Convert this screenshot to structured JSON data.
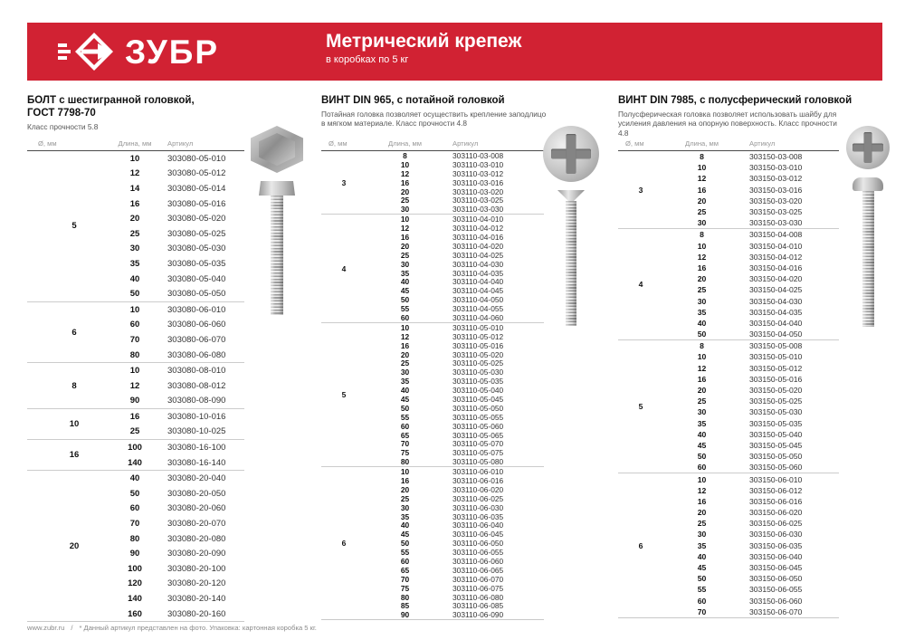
{
  "brand": {
    "name": "ЗУБР",
    "accent_color": "#d12233"
  },
  "header": {
    "title": "Метрический крепеж",
    "subtitle": "в коробках по 5 кг"
  },
  "column_headers": {
    "diameter": "Ø, мм",
    "length": "Длина, мм",
    "article": "Артикул"
  },
  "images": [
    "hex-bolt-photo",
    "countersunk-screw-photo",
    "pan-head-screw-photo"
  ],
  "tables": [
    {
      "title_line1": "БОЛТ с шестигранной головкой,",
      "title_line2": "ГОСТ 7798-70",
      "description": "Класс прочности 5.8",
      "groups": [
        {
          "d": "5",
          "rows": [
            [
              "10",
              "303080-05-010"
            ],
            [
              "12",
              "303080-05-012"
            ],
            [
              "14",
              "303080-05-014"
            ],
            [
              "16",
              "303080-05-016"
            ],
            [
              "20",
              "303080-05-020"
            ],
            [
              "25",
              "303080-05-025"
            ],
            [
              "30",
              "303080-05-030"
            ],
            [
              "35",
              "303080-05-035"
            ],
            [
              "40",
              "303080-05-040"
            ],
            [
              "50",
              "303080-05-050"
            ]
          ]
        },
        {
          "d": "6",
          "rows": [
            [
              "10",
              "303080-06-010"
            ],
            [
              "60",
              "303080-06-060"
            ],
            [
              "70",
              "303080-06-070"
            ],
            [
              "80",
              "303080-06-080"
            ]
          ]
        },
        {
          "d": "8",
          "rows": [
            [
              "10",
              "303080-08-010"
            ],
            [
              "12",
              "303080-08-012"
            ],
            [
              "90",
              "303080-08-090"
            ]
          ]
        },
        {
          "d": "10",
          "rows": [
            [
              "16",
              "303080-10-016"
            ],
            [
              "25",
              "303080-10-025"
            ]
          ]
        },
        {
          "d": "16",
          "rows": [
            [
              "100",
              "303080-16-100"
            ],
            [
              "140",
              "303080-16-140"
            ]
          ]
        },
        {
          "d": "20",
          "rows": [
            [
              "40",
              "303080-20-040"
            ],
            [
              "50",
              "303080-20-050"
            ],
            [
              "60",
              "303080-20-060"
            ],
            [
              "70",
              "303080-20-070"
            ],
            [
              "80",
              "303080-20-080"
            ],
            [
              "90",
              "303080-20-090"
            ],
            [
              "100",
              "303080-20-100"
            ],
            [
              "120",
              "303080-20-120"
            ],
            [
              "140",
              "303080-20-140"
            ],
            [
              "160",
              "303080-20-160"
            ]
          ]
        }
      ]
    },
    {
      "title_line1": "ВИНТ DIN 965, с потайной головкой",
      "title_line2": "",
      "description": "Потайная головка позволяет осуществить крепление заподлицо в мягком материале. Класс прочности 4.8",
      "groups": [
        {
          "d": "3",
          "rows": [
            [
              "8",
              "303110-03-008"
            ],
            [
              "10",
              "303110-03-010"
            ],
            [
              "12",
              "303110-03-012"
            ],
            [
              "16",
              "303110-03-016"
            ],
            [
              "20",
              "303110-03-020"
            ],
            [
              "25",
              "303110-03-025"
            ],
            [
              "30",
              "303110-03-030"
            ]
          ]
        },
        {
          "d": "4",
          "rows": [
            [
              "10",
              "303110-04-010"
            ],
            [
              "12",
              "303110-04-012"
            ],
            [
              "16",
              "303110-04-016"
            ],
            [
              "20",
              "303110-04-020"
            ],
            [
              "25",
              "303110-04-025"
            ],
            [
              "30",
              "303110-04-030"
            ],
            [
              "35",
              "303110-04-035"
            ],
            [
              "40",
              "303110-04-040"
            ],
            [
              "45",
              "303110-04-045"
            ],
            [
              "50",
              "303110-04-050"
            ],
            [
              "55",
              "303110-04-055"
            ],
            [
              "60",
              "303110-04-060"
            ]
          ]
        },
        {
          "d": "5",
          "rows": [
            [
              "10",
              "303110-05-010"
            ],
            [
              "12",
              "303110-05-012"
            ],
            [
              "16",
              "303110-05-016"
            ],
            [
              "20",
              "303110-05-020"
            ],
            [
              "25",
              "303110-05-025"
            ],
            [
              "30",
              "303110-05-030"
            ],
            [
              "35",
              "303110-05-035"
            ],
            [
              "40",
              "303110-05-040"
            ],
            [
              "45",
              "303110-05-045"
            ],
            [
              "50",
              "303110-05-050"
            ],
            [
              "55",
              "303110-05-055"
            ],
            [
              "60",
              "303110-05-060"
            ],
            [
              "65",
              "303110-05-065"
            ],
            [
              "70",
              "303110-05-070"
            ],
            [
              "75",
              "303110-05-075"
            ],
            [
              "80",
              "303110-05-080"
            ]
          ]
        },
        {
          "d": "6",
          "rows": [
            [
              "10",
              "303110-06-010"
            ],
            [
              "16",
              "303110-06-016"
            ],
            [
              "20",
              "303110-06-020"
            ],
            [
              "25",
              "303110-06-025"
            ],
            [
              "30",
              "303110-06-030"
            ],
            [
              "35",
              "303110-06-035"
            ],
            [
              "40",
              "303110-06-040"
            ],
            [
              "45",
              "303110-06-045"
            ],
            [
              "50",
              "303110-06-050"
            ],
            [
              "55",
              "303110-06-055"
            ],
            [
              "60",
              "303110-06-060"
            ],
            [
              "65",
              "303110-06-065"
            ],
            [
              "70",
              "303110-06-070"
            ],
            [
              "75",
              "303110-06-075"
            ],
            [
              "80",
              "303110-06-080"
            ],
            [
              "85",
              "303110-06-085"
            ],
            [
              "90",
              "303110-06-090"
            ]
          ]
        }
      ]
    },
    {
      "title_line1": "ВИНТ DIN 7985, с полусферический головкой",
      "title_line2": "",
      "description": "Полусферическая головка позволяет использовать шайбу для усиления давления на опорную поверхность. Класс прочности 4.8",
      "groups": [
        {
          "d": "3",
          "rows": [
            [
              "8",
              "303150-03-008"
            ],
            [
              "10",
              "303150-03-010"
            ],
            [
              "12",
              "303150-03-012"
            ],
            [
              "16",
              "303150-03-016"
            ],
            [
              "20",
              "303150-03-020"
            ],
            [
              "25",
              "303150-03-025"
            ],
            [
              "30",
              "303150-03-030"
            ]
          ]
        },
        {
          "d": "4",
          "rows": [
            [
              "8",
              "303150-04-008"
            ],
            [
              "10",
              "303150-04-010"
            ],
            [
              "12",
              "303150-04-012"
            ],
            [
              "16",
              "303150-04-016"
            ],
            [
              "20",
              "303150-04-020"
            ],
            [
              "25",
              "303150-04-025"
            ],
            [
              "30",
              "303150-04-030"
            ],
            [
              "35",
              "303150-04-035"
            ],
            [
              "40",
              "303150-04-040"
            ],
            [
              "50",
              "303150-04-050"
            ]
          ]
        },
        {
          "d": "5",
          "rows": [
            [
              "8",
              "303150-05-008"
            ],
            [
              "10",
              "303150-05-010"
            ],
            [
              "12",
              "303150-05-012"
            ],
            [
              "16",
              "303150-05-016"
            ],
            [
              "20",
              "303150-05-020"
            ],
            [
              "25",
              "303150-05-025"
            ],
            [
              "30",
              "303150-05-030"
            ],
            [
              "35",
              "303150-05-035"
            ],
            [
              "40",
              "303150-05-040"
            ],
            [
              "45",
              "303150-05-045"
            ],
            [
              "50",
              "303150-05-050"
            ],
            [
              "60",
              "303150-05-060"
            ]
          ]
        },
        {
          "d": "6",
          "rows": [
            [
              "10",
              "303150-06-010"
            ],
            [
              "12",
              "303150-06-012"
            ],
            [
              "16",
              "303150-06-016"
            ],
            [
              "20",
              "303150-06-020"
            ],
            [
              "25",
              "303150-06-025"
            ],
            [
              "30",
              "303150-06-030"
            ],
            [
              "35",
              "303150-06-035"
            ],
            [
              "40",
              "303150-06-040"
            ],
            [
              "45",
              "303150-06-045"
            ],
            [
              "50",
              "303150-06-050"
            ],
            [
              "55",
              "303150-06-055"
            ],
            [
              "60",
              "303150-06-060"
            ],
            [
              "70",
              "303150-06-070"
            ]
          ]
        }
      ]
    }
  ],
  "footer": {
    "site": "www.zubr.ru",
    "separator": "/",
    "note": "* Данный артикул представлен на фото. Упаковка: картонная коробка 5 кг."
  }
}
